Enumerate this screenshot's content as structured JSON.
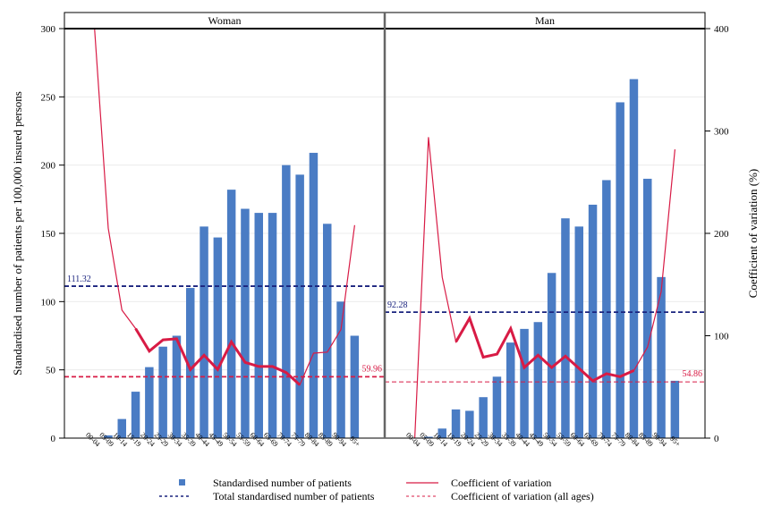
{
  "chart_data": {
    "type": "bar",
    "categories": [
      "00-04",
      "05-09",
      "10-14",
      "15-19",
      "20-24",
      "25-29",
      "30-34",
      "35-39",
      "40-44",
      "45-49",
      "50-54",
      "55-59",
      "60-64",
      "65-69",
      "70-74",
      "75-79",
      "80-84",
      "85-89",
      "90-94",
      "95+"
    ],
    "ylabel_left": "Standardised number of patients per 100,000 insured persons",
    "ylabel_right": "Coefficient of variation (%)",
    "ylim_left": [
      0,
      300
    ],
    "yticks_left": [
      0,
      50,
      100,
      150,
      200,
      250,
      300
    ],
    "ylim_right": [
      0,
      400
    ],
    "yticks_right": [
      0,
      100,
      200,
      300,
      400
    ],
    "colors": {
      "bar": "#4a7cc4",
      "cv": "#d81b45",
      "total": "#1a237e",
      "cv_all": "#d81b45"
    },
    "panels": [
      {
        "title": "Woman",
        "patients": [
          0,
          2,
          14,
          34,
          52,
          67,
          75,
          110,
          155,
          147,
          182,
          168,
          165,
          165,
          200,
          193,
          209,
          157,
          100,
          75
        ],
        "cv": [
          400,
          205,
          125,
          107,
          85,
          96,
          97,
          67,
          81,
          67,
          94,
          74,
          70,
          70,
          64,
          52,
          83,
          84,
          106,
          208
        ],
        "total": 111.32,
        "total_label": "111.32",
        "cv_all": 59.96,
        "cv_all_label": "59.96"
      },
      {
        "title": "Man",
        "patients": [
          0,
          1,
          7,
          21,
          20,
          30,
          45,
          70,
          80,
          85,
          121,
          161,
          155,
          171,
          189,
          246,
          263,
          190,
          118,
          42
        ],
        "cv": [
          0,
          294,
          157,
          94,
          117,
          79,
          82,
          107,
          69,
          81,
          69,
          80,
          68,
          56,
          63,
          60,
          66,
          89,
          143,
          282
        ],
        "total": 92.28,
        "total_label": "92.28",
        "cv_all": 54.86,
        "cv_all_label": "54.86"
      }
    ],
    "legend": [
      {
        "label": "Standardised number of patients",
        "kind": "square"
      },
      {
        "label": "Coefficient of variation",
        "kind": "line"
      },
      {
        "label": "Total standardised number of patients",
        "kind": "dash-blue"
      },
      {
        "label": "Coefficient of variation (all ages)",
        "kind": "dash-red"
      }
    ],
    "legend_placement": "bottom"
  }
}
